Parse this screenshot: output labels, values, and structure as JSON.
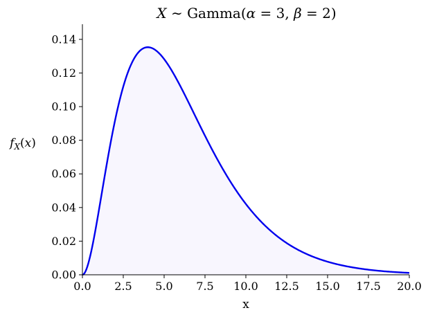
{
  "chart_data": {
    "type": "area",
    "title": "X ~ Gamma(α = 3, β = 2)",
    "xlabel": "x",
    "ylabel": "f_X(x)",
    "xlim": [
      0,
      20
    ],
    "ylim": [
      0,
      0.149
    ],
    "xticks": [
      0,
      2.5,
      5,
      7.5,
      10,
      12.5,
      15,
      17.5,
      20
    ],
    "xtick_labels": [
      "0.0",
      "2.5",
      "5.0",
      "7.5",
      "10.0",
      "12.5",
      "15.0",
      "17.5",
      "20.0"
    ],
    "yticks": [
      0,
      0.02,
      0.04,
      0.06,
      0.08,
      0.1,
      0.12,
      0.14
    ],
    "ytick_labels": [
      "0.00",
      "0.02",
      "0.04",
      "0.06",
      "0.08",
      "0.10",
      "0.12",
      "0.14"
    ],
    "grid": false,
    "series": [
      {
        "x": [
          0,
          0.5,
          1,
          1.5,
          2,
          2.5,
          3,
          3.5,
          4,
          4.5,
          5,
          5.5,
          6,
          6.5,
          7,
          7.5,
          8,
          8.5,
          9,
          9.5,
          10,
          11,
          12,
          13,
          14,
          15,
          16,
          17,
          18,
          19,
          20
        ],
        "y": [
          0,
          0.0122,
          0.0379,
          0.0664,
          0.092,
          0.1119,
          0.1255,
          0.1331,
          0.1353,
          0.1332,
          0.1283,
          0.1209,
          0.112,
          0.1024,
          0.0925,
          0.0828,
          0.0733,
          0.0644,
          0.0562,
          0.0487,
          0.0421,
          0.0308,
          0.0223,
          0.0159,
          0.0112,
          0.0078,
          0.0054,
          0.0037,
          0.0025,
          0.0017,
          0.0011
        ],
        "color": "#0000ee",
        "fill": "#f8f6fe"
      }
    ]
  }
}
